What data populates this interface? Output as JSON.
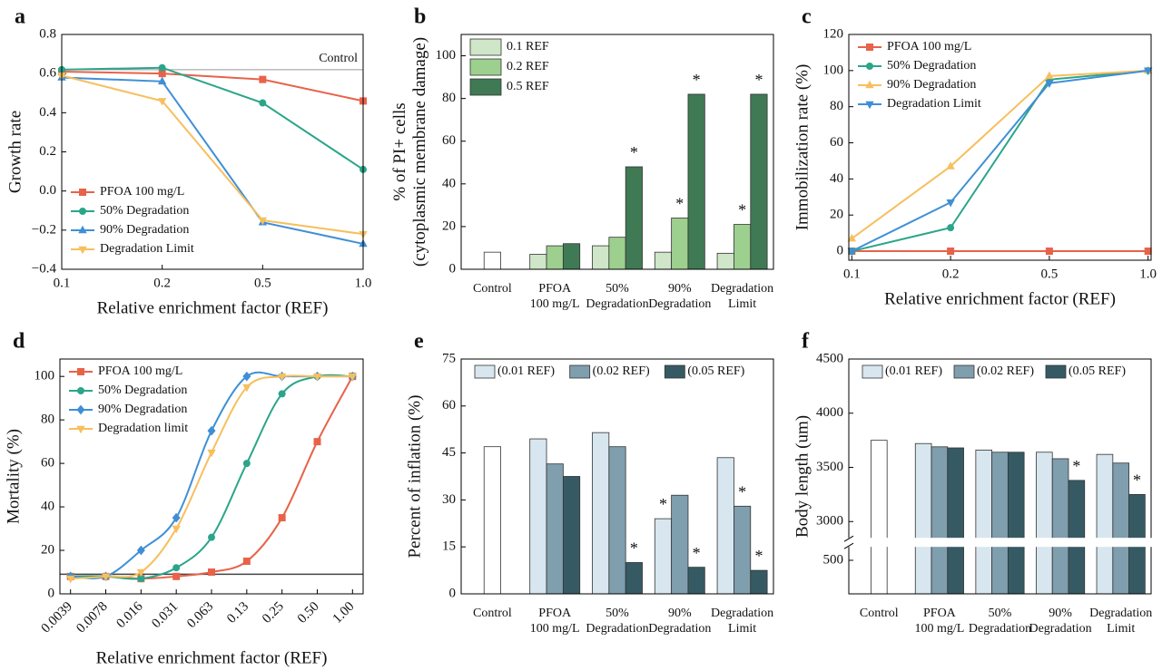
{
  "chart_data": [
    {
      "type": "line",
      "panel": "a",
      "xlabel": "Relative enrichment factor (REF)",
      "ylabel": "Growth rate",
      "categories": [
        "0.1",
        "0.2",
        "0.5",
        "1.0"
      ],
      "ylim": [
        -0.4,
        0.8
      ],
      "yticks": [
        {
          "value": -0.4,
          "label": "−0.4"
        },
        {
          "value": -0.2,
          "label": "−0.2"
        },
        {
          "value": 0,
          "label": "0.0"
        },
        0.2,
        0.4,
        0.6,
        0.8
      ],
      "reference_line": {
        "value": 0.62,
        "label": "Control"
      },
      "legend": "lower left",
      "series": [
        {
          "name": "PFOA 100 mg/L",
          "color": "#e8624a",
          "marker": "square",
          "values": [
            0.61,
            0.6,
            0.57,
            0.46
          ]
        },
        {
          "name": "50%  Degradation",
          "color": "#2ba58a",
          "marker": "circle",
          "values": [
            0.62,
            0.63,
            0.45,
            0.11
          ]
        },
        {
          "name": "90% Degradation",
          "color": "#3f8fd6",
          "marker": "triangle",
          "values": [
            0.58,
            0.56,
            -0.16,
            -0.27
          ]
        },
        {
          "name": "Degradation Limit",
          "color": "#f7bf5e",
          "marker": "triangle-down",
          "values": [
            0.59,
            0.46,
            -0.15,
            -0.22
          ]
        }
      ]
    },
    {
      "type": "bar",
      "panel": "b",
      "ylabel": [
        "% of PI+ cells",
        "(cytoplasmic membrane damage)"
      ],
      "categories": [
        [
          "Control"
        ],
        [
          "PFOA",
          "100 mg/L"
        ],
        [
          "50%",
          "Degradation"
        ],
        [
          "90%",
          "Degradation"
        ],
        [
          "Degradation",
          "Limit"
        ]
      ],
      "ylim": [
        0,
        110
      ],
      "yticks": [
        0,
        20,
        40,
        60,
        80,
        100
      ],
      "legend": "upper left",
      "control": {
        "value": 8,
        "color": "#ffffff"
      },
      "series": [
        {
          "name": "0.1 REF",
          "color": "#cfe6c8",
          "values": [
            null,
            7,
            11,
            8,
            7.5
          ],
          "labels": [
            null,
            null,
            null,
            null,
            null
          ]
        },
        {
          "name": "0.2 REF",
          "color": "#9dcf8f",
          "values": [
            null,
            11,
            15,
            24,
            21
          ],
          "labels": [
            null,
            null,
            null,
            "*",
            "*"
          ]
        },
        {
          "name": "0.5 REF",
          "color": "#3f7a55",
          "values": [
            null,
            12,
            48,
            82,
            82
          ],
          "labels": [
            null,
            null,
            "*",
            "*",
            "*"
          ]
        }
      ]
    },
    {
      "type": "line",
      "panel": "c",
      "xlabel": "Relative enrichment factor (REF)",
      "ylabel": "Immobilization rate (%)",
      "categories": [
        "0.1",
        "0.2",
        "0.5",
        "1.0"
      ],
      "ylim": [
        -5,
        120
      ],
      "yticks": [
        0,
        20,
        40,
        60,
        80,
        100,
        120
      ],
      "legend": "upper left",
      "series": [
        {
          "name": "PFOA 100 mg/L",
          "color": "#e8624a",
          "marker": "square",
          "values": [
            0,
            0,
            0,
            0
          ]
        },
        {
          "name": "50%  Degradation",
          "color": "#2ba58a",
          "marker": "circle",
          "values": [
            0,
            13,
            95,
            100
          ]
        },
        {
          "name": "90% Degradation",
          "color": "#f7bf5e",
          "marker": "triangle",
          "values": [
            7,
            47,
            97,
            100
          ]
        },
        {
          "name": "Degradation Limit",
          "color": "#3f8fd6",
          "marker": "triangle-down",
          "values": [
            0,
            27,
            93,
            100
          ]
        }
      ]
    },
    {
      "type": "line",
      "panel": "d",
      "xlabel": "Relative enrichment factor (REF)",
      "ylabel": "Mortality (%)",
      "smooth": true,
      "xtick_rotation": 45,
      "categories": [
        "0.0039",
        "0.0078",
        "0.016",
        "0.031",
        "0.063",
        "0.13",
        "0.25",
        "0.50",
        "1.00"
      ],
      "ylim": [
        0,
        108
      ],
      "yticks": [
        0,
        20,
        40,
        60,
        80,
        100
      ],
      "legend": "upper left",
      "reference_line": {
        "value": 9
      },
      "series": [
        {
          "name": "PFOA 100 mg/L",
          "color": "#e8624a",
          "marker": "square",
          "values": [
            8,
            8,
            7,
            8,
            10,
            15,
            35,
            70,
            100
          ]
        },
        {
          "name": "50% Degradation",
          "color": "#2ba58a",
          "marker": "circle",
          "values": [
            8,
            8,
            7,
            12,
            26,
            60,
            92,
            100,
            100
          ]
        },
        {
          "name": "90% Degradation",
          "color": "#3f8fd6",
          "marker": "diamond",
          "values": [
            8,
            8,
            20,
            35,
            75,
            100,
            100,
            100,
            100
          ]
        },
        {
          "name": "Degradation limit",
          "color": "#f7bf5e",
          "marker": "triangle-down",
          "values": [
            7,
            8,
            10,
            30,
            65,
            95,
            100,
            100,
            100
          ]
        }
      ]
    },
    {
      "type": "bar",
      "panel": "e",
      "ylabel": "Percent of inflation (%)",
      "categories": [
        [
          "Control"
        ],
        [
          "PFOA",
          "100 mg/L"
        ],
        [
          "50%",
          "Degradation"
        ],
        [
          "90%",
          "Degradation"
        ],
        [
          "Degradation",
          "Limit"
        ]
      ],
      "ylim": [
        0,
        75
      ],
      "yticks": [
        0,
        15,
        30,
        45,
        60,
        75
      ],
      "legend": "upper center",
      "control": {
        "value": 47,
        "color": "#ffffff"
      },
      "series": [
        {
          "name": "(0.01 REF)",
          "color": "#d7e6ef",
          "values": [
            null,
            49.5,
            51.5,
            24,
            43.5
          ],
          "labels": [
            null,
            null,
            null,
            "*",
            null
          ]
        },
        {
          "name": "(0.02 REF)",
          "color": "#7f9eae",
          "values": [
            null,
            41.5,
            47,
            31.5,
            28
          ],
          "labels": [
            null,
            null,
            null,
            null,
            "*"
          ]
        },
        {
          "name": "(0.05 REF)",
          "color": "#365a63",
          "values": [
            null,
            37.5,
            10,
            8.5,
            7.5
          ],
          "labels": [
            null,
            null,
            "*",
            "*",
            "*"
          ]
        }
      ]
    },
    {
      "type": "bar",
      "panel": "f",
      "ylabel": "Body length (um)",
      "categories": [
        [
          "Control"
        ],
        [
          "PFOA",
          "100 mg/L"
        ],
        [
          "50%",
          "Degradation"
        ],
        [
          "90%",
          "Degradation"
        ],
        [
          "Degradation",
          "Limit"
        ]
      ],
      "ylim": [
        0,
        4500
      ],
      "ybreak": [
        700,
        2850
      ],
      "yticks": [
        500,
        3000,
        3500,
        4000,
        4500
      ],
      "legend": "upper center",
      "control": {
        "value": 3750,
        "color": "#ffffff"
      },
      "series": [
        {
          "name": "(0.01 REF)",
          "color": "#d7e6ef",
          "values": [
            null,
            3720,
            3660,
            3640,
            3620
          ],
          "labels": [
            null,
            null,
            null,
            null,
            null
          ]
        },
        {
          "name": "(0.02 REF)",
          "color": "#7f9eae",
          "values": [
            null,
            3690,
            3640,
            3580,
            3540
          ],
          "labels": [
            null,
            null,
            null,
            null,
            null
          ]
        },
        {
          "name": "(0.05 REF)",
          "color": "#365a63",
          "values": [
            null,
            3680,
            3640,
            3380,
            3250
          ],
          "labels": [
            null,
            null,
            null,
            "*",
            "*"
          ]
        }
      ]
    }
  ]
}
